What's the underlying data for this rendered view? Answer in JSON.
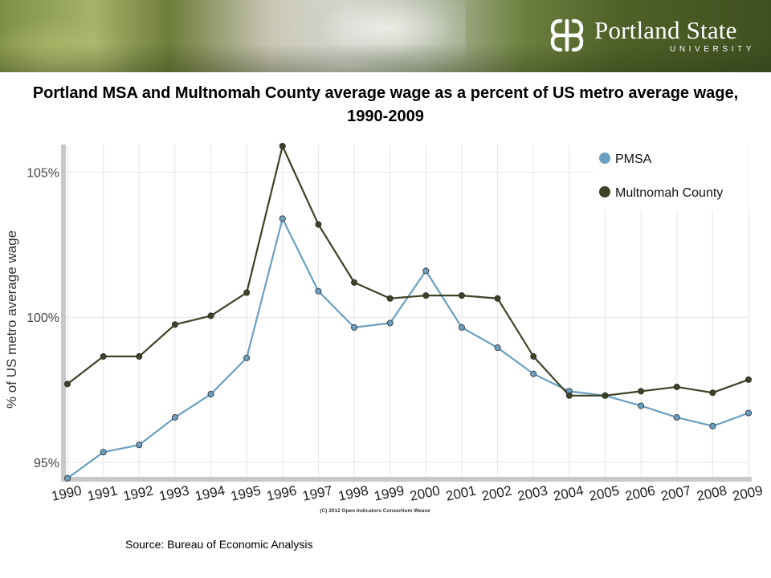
{
  "header": {
    "logo_name": "Portland State",
    "logo_sub": "UNIVERSITY"
  },
  "chart_data": {
    "type": "line",
    "title": "Portland MSA and Multnomah County average wage as a percent of US metro average wage, 1990-2009",
    "ylabel": "% of US metro average wage",
    "xlabel": "",
    "x": [
      "1990",
      "1991",
      "1992",
      "1993",
      "1994",
      "1995",
      "1996",
      "1997",
      "1998",
      "1999",
      "2000",
      "2001",
      "2002",
      "2003",
      "2004",
      "2005",
      "2006",
      "2007",
      "2008",
      "2009"
    ],
    "ylim": [
      94.5,
      105.9
    ],
    "yticks": [
      95,
      100,
      105
    ],
    "ytick_labels": [
      "95%",
      "100%",
      "105%"
    ],
    "grid": true,
    "legend_position": "top-right",
    "series": [
      {
        "name": "PMSA",
        "color": "#6a9fc0",
        "values": [
          94.45,
          95.35,
          95.6,
          96.55,
          97.35,
          98.6,
          103.4,
          100.9,
          99.65,
          99.8,
          101.6,
          99.65,
          98.95,
          98.05,
          97.45,
          97.3,
          96.95,
          96.55,
          96.25,
          96.7
        ]
      },
      {
        "name": "Multnomah County",
        "color": "#3b4426",
        "values": [
          97.7,
          98.65,
          98.65,
          99.75,
          100.05,
          100.85,
          105.9,
          103.2,
          101.2,
          100.65,
          100.75,
          100.75,
          100.65,
          98.65,
          97.3,
          97.3,
          97.45,
          97.6,
          97.4,
          97.85
        ]
      }
    ],
    "watermark": "(C) 2012 Open Indicators Consortium Weave"
  },
  "source": "Source: Bureau of Economic Analysis"
}
